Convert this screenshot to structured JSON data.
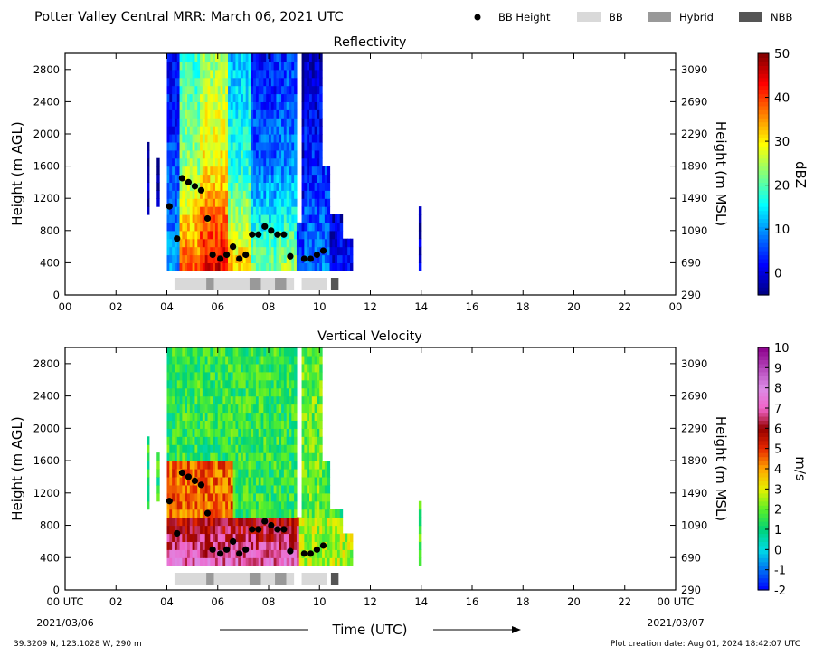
{
  "header": {
    "title": "Potter Valley Central MRR:  March 06, 2021 UTC",
    "legend": [
      {
        "label": "BB Height",
        "kind": "dot",
        "color": "#000000"
      },
      {
        "label": "BB",
        "kind": "box",
        "color": "#d9d9d9"
      },
      {
        "label": "Hybrid",
        "kind": "box",
        "color": "#999999"
      },
      {
        "label": "NBB",
        "kind": "box",
        "color": "#555555"
      }
    ]
  },
  "chart_data": [
    {
      "type": "heatmap",
      "title": "Reflectivity",
      "ylabel": "Height (m AGL)",
      "ylabel_right": "Height (m MSL)",
      "xlim": [
        0,
        24
      ],
      "ylim": [
        0,
        3000
      ],
      "xticks": [
        "00",
        "02",
        "04",
        "06",
        "08",
        "10",
        "12",
        "14",
        "16",
        "18",
        "20",
        "22",
        "00"
      ],
      "yticks": [
        "0",
        "400",
        "800",
        "1200",
        "1600",
        "2000",
        "2400",
        "2800"
      ],
      "yticks_right": [
        "290",
        "690",
        "1090",
        "1490",
        "1890",
        "2290",
        "2690",
        "3090"
      ],
      "colorbar": {
        "label": "dBZ",
        "min": -5,
        "max": 50,
        "ticks": [
          "0",
          "10",
          "20",
          "30",
          "40",
          "50"
        ],
        "colormap": "jet"
      },
      "bb_height": {
        "x": [
          4.1,
          4.4,
          4.6,
          4.85,
          5.1,
          5.35,
          5.6,
          5.8,
          6.1,
          6.35,
          6.6,
          6.85,
          7.1,
          7.35,
          7.6,
          7.85,
          8.1,
          8.35,
          8.6,
          8.85,
          9.4,
          9.65,
          9.9,
          10.15
        ],
        "y": [
          1100,
          700,
          1450,
          1400,
          1350,
          1300,
          950,
          500,
          450,
          500,
          600,
          450,
          500,
          750,
          750,
          850,
          800,
          750,
          750,
          480,
          450,
          450,
          500,
          550
        ]
      },
      "bb_type": [
        {
          "type": "BB",
          "start": 4.3,
          "end": 5.55
        },
        {
          "type": "Hybrid",
          "start": 5.55,
          "end": 5.85
        },
        {
          "type": "BB",
          "start": 5.85,
          "end": 7.25
        },
        {
          "type": "Hybrid",
          "start": 7.25,
          "end": 7.7
        },
        {
          "type": "BB",
          "start": 7.7,
          "end": 8.25
        },
        {
          "type": "Hybrid",
          "start": 8.25,
          "end": 8.7
        },
        {
          "type": "BB",
          "start": 8.7,
          "end": 9.0
        },
        {
          "type": "BB",
          "start": 9.3,
          "end": 10.3
        },
        {
          "type": "NBB",
          "start": 10.45,
          "end": 10.75
        }
      ]
    },
    {
      "type": "heatmap",
      "title": "Vertical Velocity",
      "ylabel": "Height (m AGL)",
      "ylabel_right": "Height (m MSL)",
      "xlabel": "Time (UTC)",
      "xlim": [
        0,
        24
      ],
      "ylim": [
        0,
        3000
      ],
      "xticks": [
        "00 UTC",
        "02",
        "04",
        "06",
        "08",
        "10",
        "12",
        "14",
        "16",
        "18",
        "20",
        "22",
        "00 UTC"
      ],
      "x_start_date": "2021/03/06",
      "x_end_date": "2021/03/07",
      "yticks": [
        "0",
        "400",
        "800",
        "1200",
        "1600",
        "2000",
        "2400",
        "2800"
      ],
      "yticks_right": [
        "290",
        "690",
        "1090",
        "1490",
        "1890",
        "2290",
        "2690",
        "3090"
      ],
      "colorbar": {
        "label": "m/s",
        "min": -2,
        "max": 10,
        "ticks": [
          "-2",
          "-1",
          "0",
          "1",
          "2",
          "3",
          "4",
          "5",
          "6",
          "7",
          "8",
          "9",
          "10"
        ]
      },
      "bb_height": {
        "x": [
          4.1,
          4.4,
          4.6,
          4.85,
          5.1,
          5.35,
          5.6,
          5.8,
          6.1,
          6.35,
          6.6,
          6.85,
          7.1,
          7.35,
          7.6,
          7.85,
          8.1,
          8.35,
          8.6,
          8.85,
          9.4,
          9.65,
          9.9,
          10.15
        ],
        "y": [
          1100,
          700,
          1450,
          1400,
          1350,
          1300,
          950,
          500,
          450,
          500,
          600,
          450,
          500,
          750,
          750,
          850,
          800,
          750,
          750,
          480,
          450,
          450,
          500,
          550
        ]
      },
      "bb_type": [
        {
          "type": "BB",
          "start": 4.3,
          "end": 5.55
        },
        {
          "type": "Hybrid",
          "start": 5.55,
          "end": 5.85
        },
        {
          "type": "BB",
          "start": 5.85,
          "end": 7.25
        },
        {
          "type": "Hybrid",
          "start": 7.25,
          "end": 7.7
        },
        {
          "type": "BB",
          "start": 7.7,
          "end": 8.25
        },
        {
          "type": "Hybrid",
          "start": 8.25,
          "end": 8.7
        },
        {
          "type": "BB",
          "start": 8.7,
          "end": 9.0
        },
        {
          "type": "BB",
          "start": 9.3,
          "end": 10.3
        },
        {
          "type": "NBB",
          "start": 10.45,
          "end": 10.75
        }
      ]
    }
  ],
  "footer": {
    "location": "39.3209 N, 123.1028 W, 290 m",
    "creation": "Plot creation date: Aug 01, 2024 18:42:07 UTC"
  }
}
